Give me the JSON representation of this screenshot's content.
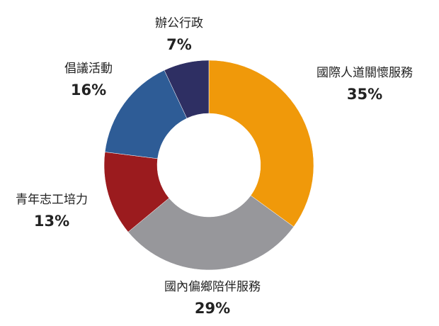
{
  "chart_data": {
    "type": "donut",
    "categories": [
      "國際人道關懷服務",
      "國內偏鄉陪伴服務",
      "青年志工培力",
      "倡議活動",
      "辦公行政"
    ],
    "values": [
      35,
      29,
      13,
      16,
      7
    ],
    "value_labels": [
      "35%",
      "29%",
      "13%",
      "16%",
      "7%"
    ],
    "colors": [
      "#f0990a",
      "#97979b",
      "#9b1b1e",
      "#2e5c96",
      "#2e2f63"
    ]
  }
}
